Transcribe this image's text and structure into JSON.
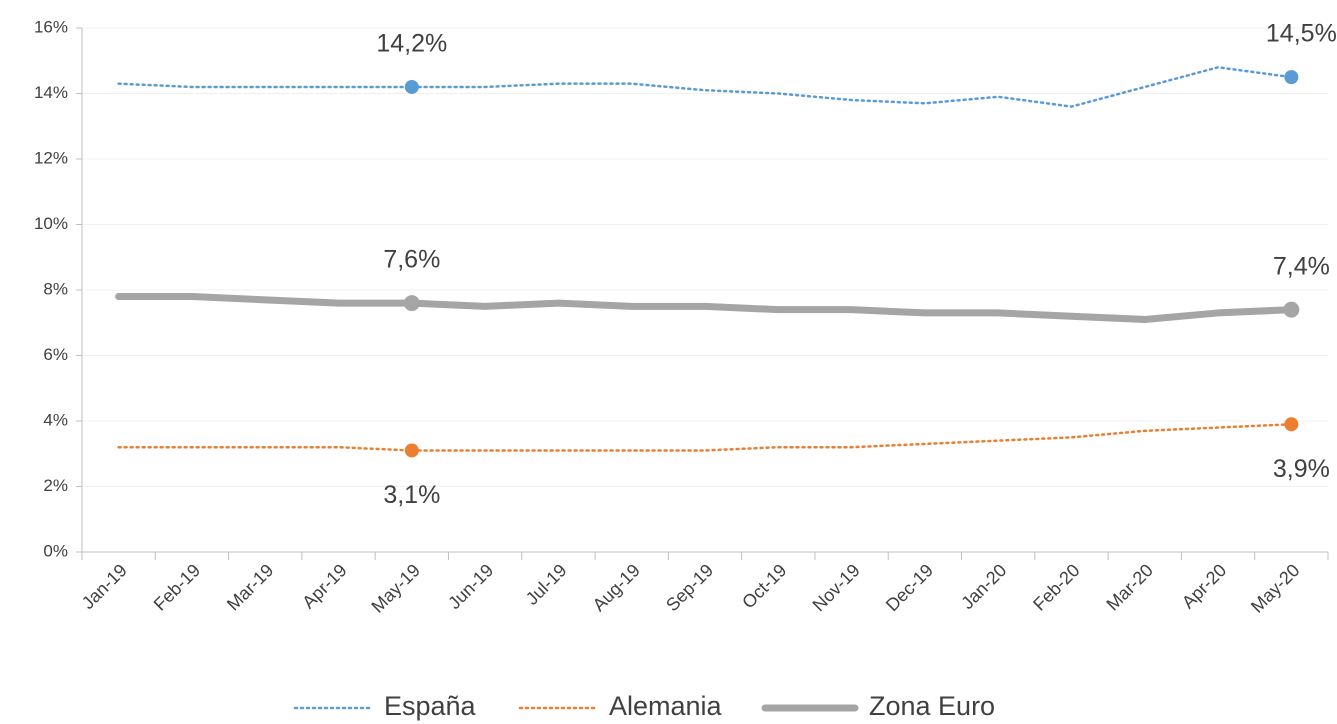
{
  "chart_data": {
    "type": "line",
    "categories": [
      "Jan-19",
      "Feb-19",
      "Mar-19",
      "Apr-19",
      "May-19",
      "Jun-19",
      "Jul-19",
      "Aug-19",
      "Sep-19",
      "Oct-19",
      "Nov-19",
      "Dec-19",
      "Jan-20",
      "Feb-20",
      "Mar-20",
      "Apr-20",
      "May-20"
    ],
    "series": [
      {
        "name": "España",
        "color": "#5b9bd5",
        "style": "dotted",
        "values": [
          14.3,
          14.2,
          14.2,
          14.2,
          14.2,
          14.2,
          14.3,
          14.3,
          14.1,
          14.0,
          13.8,
          13.7,
          13.9,
          13.6,
          14.2,
          14.8,
          14.5
        ],
        "value_labels": [
          null,
          null,
          null,
          null,
          "14,2%",
          null,
          null,
          null,
          null,
          null,
          null,
          null,
          null,
          null,
          null,
          null,
          "14,5%"
        ]
      },
      {
        "name": "Alemania",
        "color": "#ed7d31",
        "style": "dotted",
        "values": [
          3.2,
          3.2,
          3.2,
          3.2,
          3.1,
          3.1,
          3.1,
          3.1,
          3.1,
          3.2,
          3.2,
          3.3,
          3.4,
          3.5,
          3.7,
          3.8,
          3.9
        ],
        "value_labels": [
          null,
          null,
          null,
          null,
          "3,1%",
          null,
          null,
          null,
          null,
          null,
          null,
          null,
          null,
          null,
          null,
          null,
          "3,9%"
        ]
      },
      {
        "name": "Zona Euro",
        "color": "#a5a5a5",
        "style": "solid",
        "values": [
          7.8,
          7.8,
          7.7,
          7.6,
          7.6,
          7.5,
          7.6,
          7.5,
          7.5,
          7.4,
          7.4,
          7.3,
          7.3,
          7.2,
          7.1,
          7.3,
          7.4
        ],
        "value_labels": [
          null,
          null,
          null,
          null,
          "7,6%",
          null,
          null,
          null,
          null,
          null,
          null,
          null,
          null,
          null,
          null,
          null,
          "7,4%"
        ]
      }
    ],
    "ylim": [
      0,
      16
    ],
    "yticks": [
      {
        "value": 0,
        "label": "0%"
      },
      {
        "value": 2,
        "label": "2%"
      },
      {
        "value": 4,
        "label": "4%"
      },
      {
        "value": 6,
        "label": "6%"
      },
      {
        "value": 8,
        "label": "8%"
      },
      {
        "value": 10,
        "label": "10%"
      },
      {
        "value": 12,
        "label": "12%"
      },
      {
        "value": 14,
        "label": "14%"
      },
      {
        "value": 16,
        "label": "16%"
      }
    ],
    "grid": true,
    "legend": "bottom"
  }
}
